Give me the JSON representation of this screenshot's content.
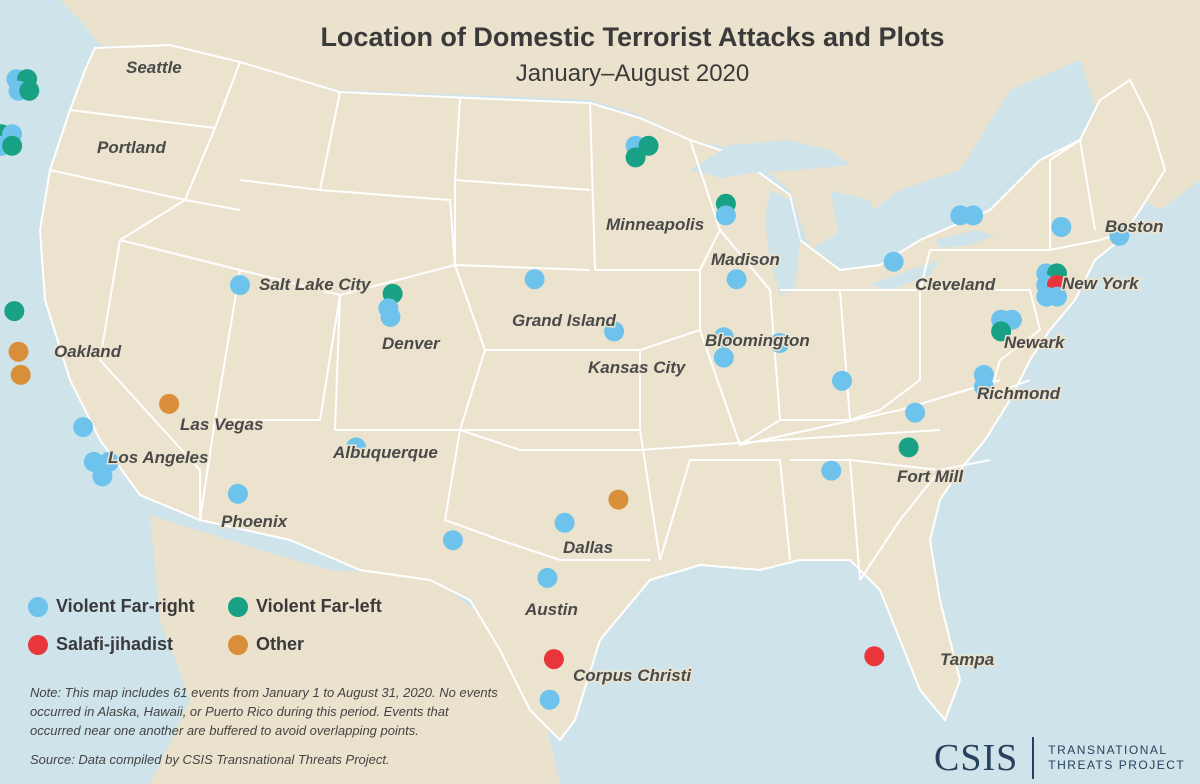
{
  "title": "Location of Domestic Terrorist Attacks and Plots",
  "subtitle": "January–August 2020",
  "colors": {
    "far_right": "#6ec3ec",
    "far_left": "#18a184",
    "salafi": "#e8363a",
    "other": "#d98e3a",
    "land": "#ece3cf",
    "water": "#cfe3ea",
    "border": "#ffffff"
  },
  "legend": [
    {
      "key": "far_right",
      "label": "Violent Far-right"
    },
    {
      "key": "far_left",
      "label": "Violent Far-left"
    },
    {
      "key": "salafi",
      "label": "Salafi-jihadist"
    },
    {
      "key": "other",
      "label": "Other"
    }
  ],
  "cities": [
    "Seattle",
    "Portland",
    "Oakland",
    "Los Angeles",
    "Las Vegas",
    "Salt Lake City",
    "Phoenix",
    "Albuquerque",
    "Denver",
    "Grand Island",
    "Kansas City",
    "Minneapolis",
    "Madison",
    "Bloomington",
    "Dallas",
    "Austin",
    "Corpus Christi",
    "Cleveland",
    "Boston",
    "New York",
    "Newark",
    "Richmond",
    "Fort Mill",
    "Tampa"
  ],
  "events": [
    {
      "lon": -122.4,
      "lat": 47.8,
      "type": "far_right"
    },
    {
      "lon": -121.9,
      "lat": 47.8,
      "type": "far_left"
    },
    {
      "lon": -122.3,
      "lat": 47.4,
      "type": "far_right"
    },
    {
      "lon": -121.8,
      "lat": 47.4,
      "type": "far_left"
    },
    {
      "lon": -123.1,
      "lat": 45.9,
      "type": "far_left"
    },
    {
      "lon": -122.6,
      "lat": 45.9,
      "type": "far_right"
    },
    {
      "lon": -123.1,
      "lat": 45.5,
      "type": "far_right"
    },
    {
      "lon": -122.6,
      "lat": 45.5,
      "type": "far_left"
    },
    {
      "lon": -123.9,
      "lat": 44.7,
      "type": "far_right"
    },
    {
      "lon": -122.5,
      "lat": 39.8,
      "type": "far_left"
    },
    {
      "lon": -122.3,
      "lat": 38.4,
      "type": "other"
    },
    {
      "lon": -122.2,
      "lat": 37.6,
      "type": "other"
    },
    {
      "lon": -119.3,
      "lat": 35.8,
      "type": "far_right"
    },
    {
      "lon": -118.8,
      "lat": 34.6,
      "type": "far_right"
    },
    {
      "lon": -118.1,
      "lat": 34.6,
      "type": "far_right"
    },
    {
      "lon": -118.4,
      "lat": 34.1,
      "type": "far_right"
    },
    {
      "lon": -115.3,
      "lat": 36.6,
      "type": "other"
    },
    {
      "lon": -112.0,
      "lat": 40.7,
      "type": "far_right"
    },
    {
      "lon": -112.1,
      "lat": 33.5,
      "type": "far_right"
    },
    {
      "lon": -106.6,
      "lat": 35.1,
      "type": "far_right"
    },
    {
      "lon": -104.9,
      "lat": 40.4,
      "type": "far_left"
    },
    {
      "lon": -105.1,
      "lat": 39.9,
      "type": "far_right"
    },
    {
      "lon": -105.0,
      "lat": 39.6,
      "type": "far_right"
    },
    {
      "lon": -98.3,
      "lat": 40.9,
      "type": "far_right"
    },
    {
      "lon": -93.6,
      "lat": 45.5,
      "type": "far_right"
    },
    {
      "lon": -93.0,
      "lat": 45.5,
      "type": "far_left"
    },
    {
      "lon": -93.6,
      "lat": 45.1,
      "type": "far_left"
    },
    {
      "lon": -94.6,
      "lat": 39.1,
      "type": "far_right"
    },
    {
      "lon": -89.4,
      "lat": 43.5,
      "type": "far_left"
    },
    {
      "lon": -89.4,
      "lat": 43.1,
      "type": "far_right"
    },
    {
      "lon": -88.9,
      "lat": 40.9,
      "type": "far_right"
    },
    {
      "lon": -89.5,
      "lat": 38.9,
      "type": "far_right"
    },
    {
      "lon": -89.5,
      "lat": 38.2,
      "type": "far_right"
    },
    {
      "lon": -86.9,
      "lat": 38.7,
      "type": "far_right"
    },
    {
      "lon": -84.0,
      "lat": 37.4,
      "type": "far_right"
    },
    {
      "lon": -84.5,
      "lat": 34.3,
      "type": "far_right"
    },
    {
      "lon": -81.6,
      "lat": 41.5,
      "type": "far_right"
    },
    {
      "lon": -78.5,
      "lat": 43.1,
      "type": "far_right"
    },
    {
      "lon": -77.9,
      "lat": 43.1,
      "type": "far_right"
    },
    {
      "lon": -73.8,
      "lat": 42.7,
      "type": "far_right"
    },
    {
      "lon": -71.1,
      "lat": 42.4,
      "type": "far_right"
    },
    {
      "lon": -74.5,
      "lat": 41.1,
      "type": "far_right"
    },
    {
      "lon": -74.0,
      "lat": 41.1,
      "type": "far_left"
    },
    {
      "lon": -74.5,
      "lat": 40.7,
      "type": "far_right"
    },
    {
      "lon": -74.0,
      "lat": 40.7,
      "type": "salafi"
    },
    {
      "lon": -74.5,
      "lat": 40.3,
      "type": "far_right"
    },
    {
      "lon": -74.0,
      "lat": 40.3,
      "type": "far_right"
    },
    {
      "lon": -76.6,
      "lat": 39.5,
      "type": "far_right"
    },
    {
      "lon": -76.1,
      "lat": 39.5,
      "type": "far_right"
    },
    {
      "lon": -76.6,
      "lat": 39.1,
      "type": "far_left"
    },
    {
      "lon": -77.4,
      "lat": 37.6,
      "type": "far_right"
    },
    {
      "lon": -77.4,
      "lat": 37.2,
      "type": "far_right"
    },
    {
      "lon": -80.6,
      "lat": 36.3,
      "type": "far_right"
    },
    {
      "lon": -80.9,
      "lat": 35.1,
      "type": "far_left"
    },
    {
      "lon": -82.5,
      "lat": 27.9,
      "type": "salafi"
    },
    {
      "lon": -94.4,
      "lat": 33.3,
      "type": "other"
    },
    {
      "lon": -96.9,
      "lat": 32.5,
      "type": "far_right"
    },
    {
      "lon": -97.7,
      "lat": 30.6,
      "type": "far_right"
    },
    {
      "lon": -102.1,
      "lat": 31.9,
      "type": "far_right"
    },
    {
      "lon": -97.4,
      "lat": 27.8,
      "type": "salafi"
    },
    {
      "lon": -97.6,
      "lat": 26.4,
      "type": "far_right"
    }
  ],
  "note": "Note: This map includes 61 events from January 1 to August 31, 2020. No events occurred in Alaska, Hawaii, or Puerto Rico during this period. Events that occurred near one another are buffered to avoid overlapping points.",
  "source": "Source: Data compiled by CSIS Transnational Threats Project.",
  "logo": {
    "main": "CSIS",
    "line1": "TRANSNATIONAL",
    "line2": "THREATS PROJECT"
  }
}
